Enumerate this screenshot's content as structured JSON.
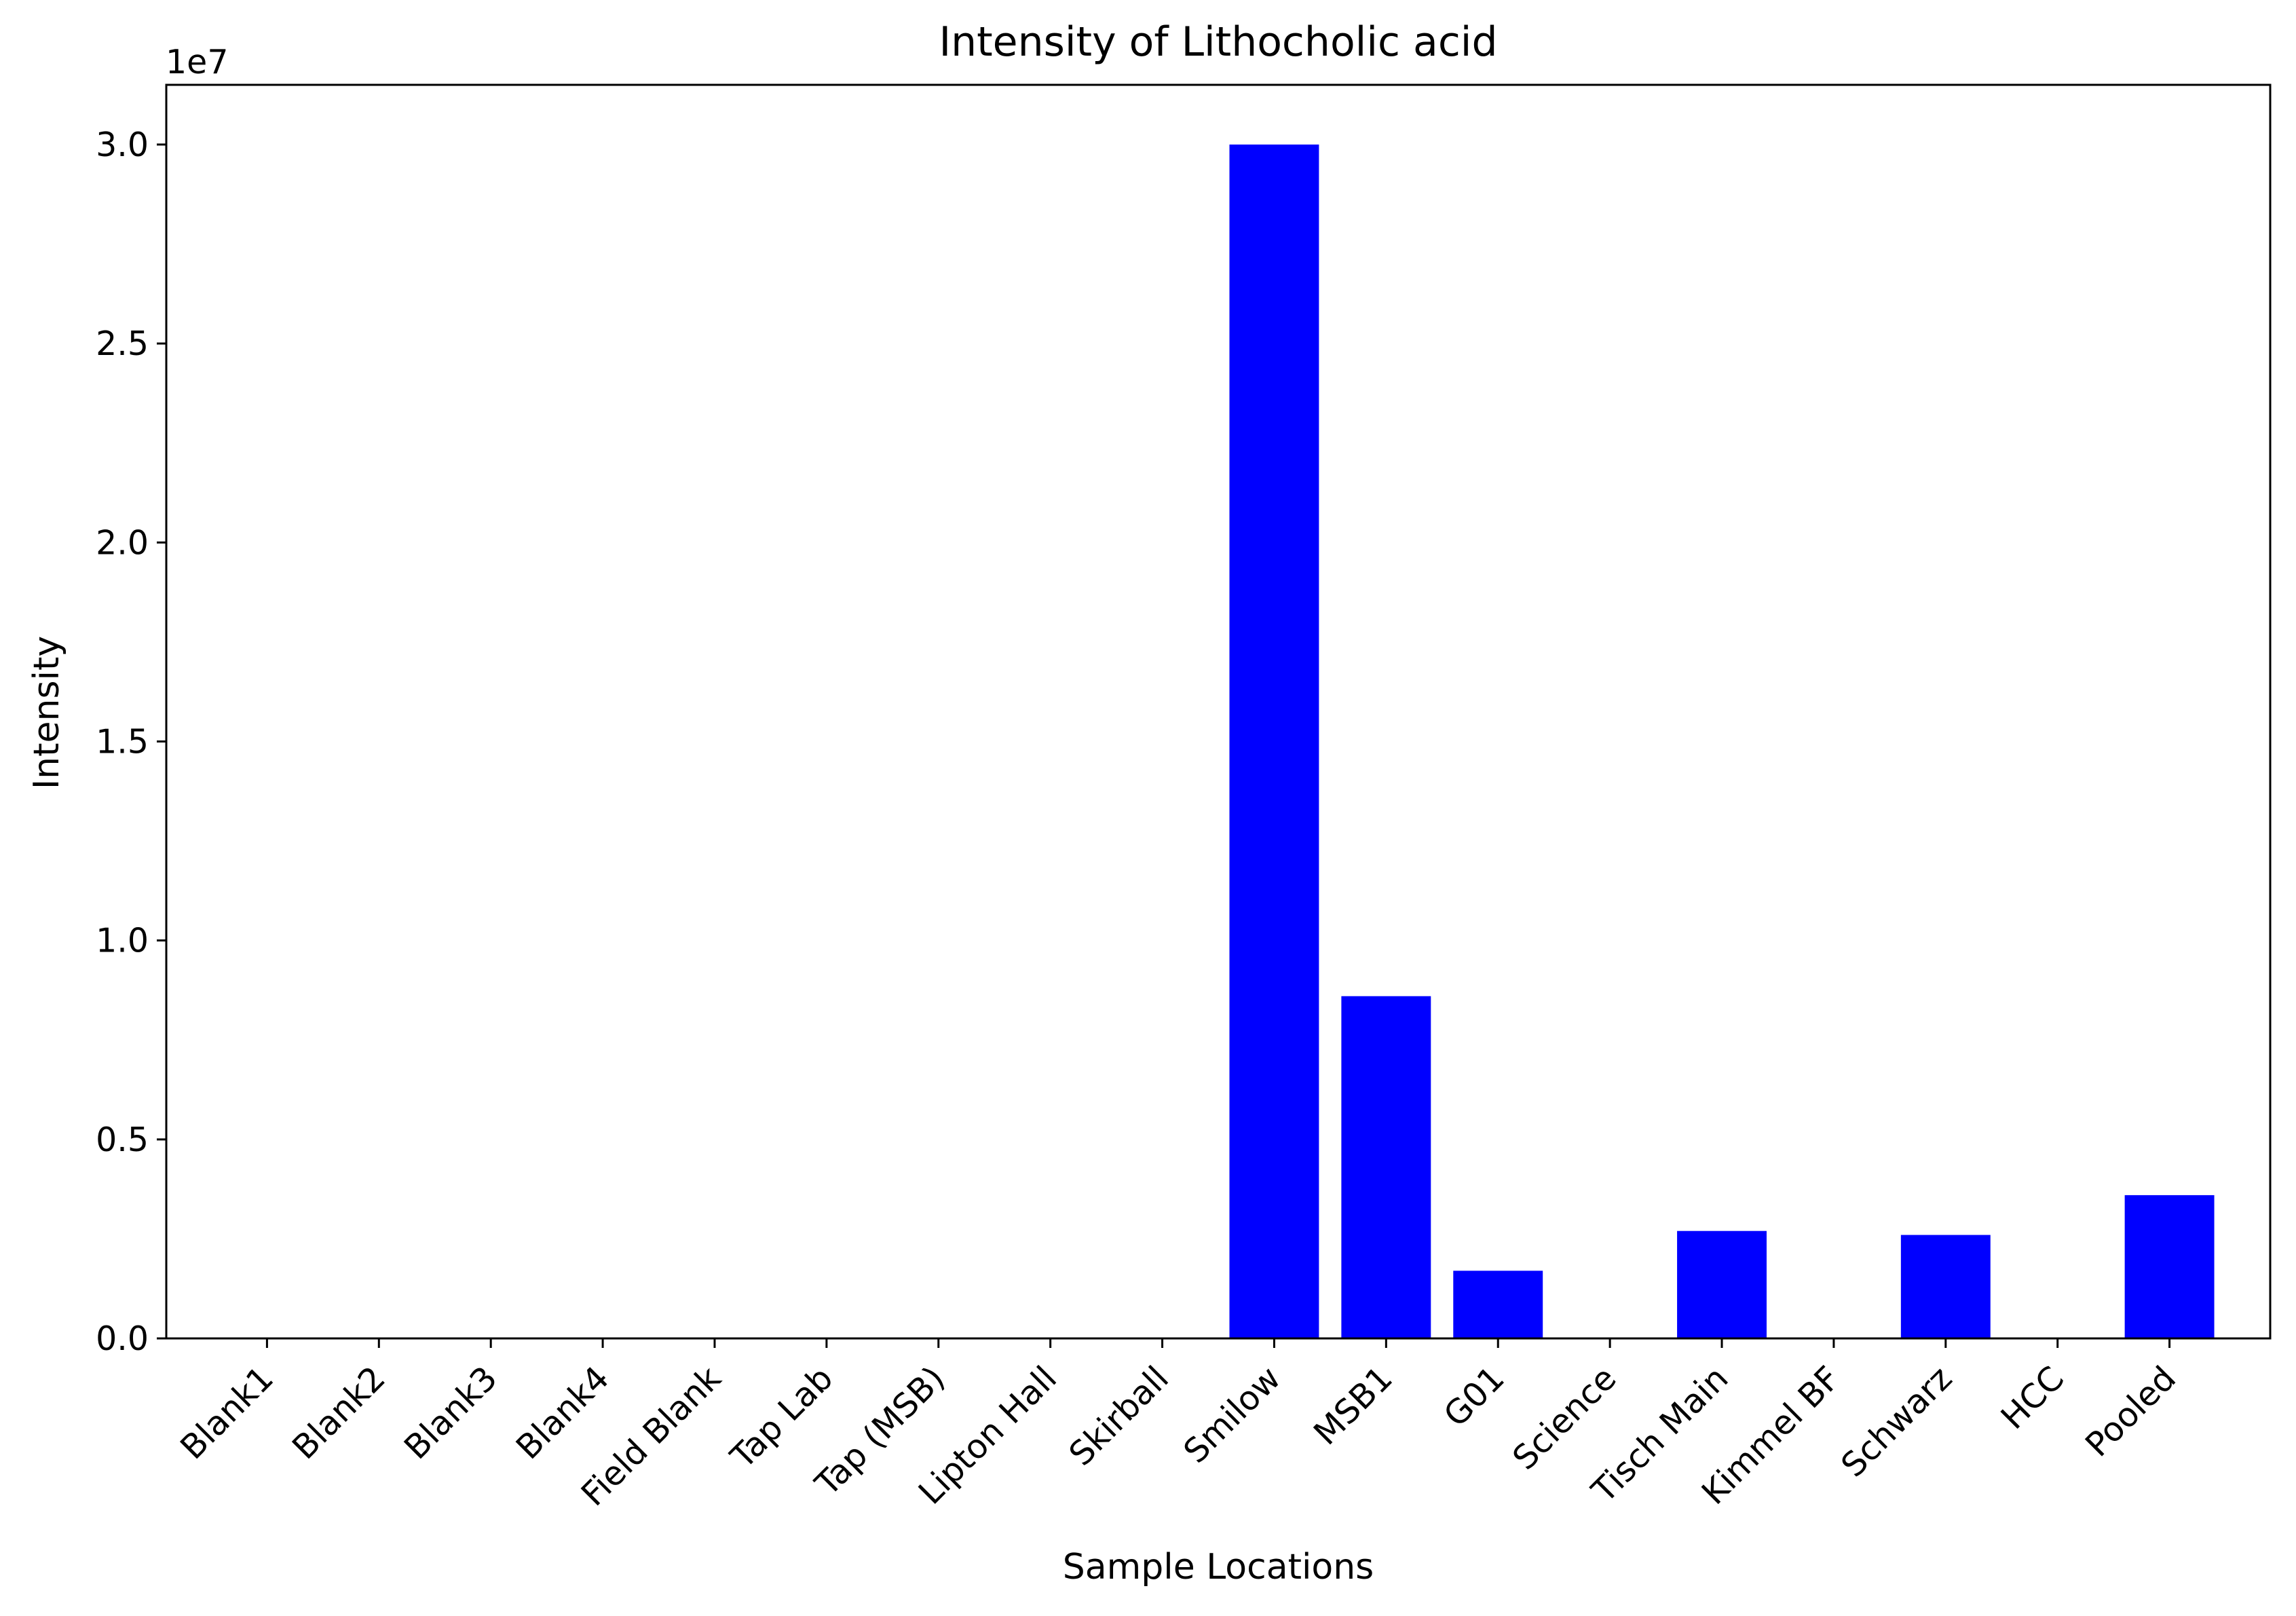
{
  "chart_data": {
    "type": "bar",
    "title": "Intensity of Lithocholic acid",
    "xlabel": "Sample Locations",
    "ylabel": "Intensity",
    "y_offset_label": "1e7",
    "y_scale_factor": 10000000,
    "ylim": [
      0,
      31500000
    ],
    "yticks": [
      0,
      5000000,
      10000000,
      15000000,
      20000000,
      25000000,
      30000000
    ],
    "ytick_labels": [
      "0.0",
      "0.5",
      "1.0",
      "1.5",
      "2.0",
      "2.5",
      "3.0"
    ],
    "grid": false,
    "bar_color": "#0000ff",
    "categories": [
      "Blank1",
      "Blank2",
      "Blank3",
      "Blank4",
      "Field Blank",
      "Tap Lab",
      "Tap (MSB)",
      "Lipton Hall",
      "Skirball",
      "Smilow",
      "MSB1",
      "G01",
      "Science",
      "Tisch Main",
      "Kimmel BF",
      "Schwarz",
      "HCC",
      "Pooled"
    ],
    "values": [
      0,
      0,
      0,
      0,
      0,
      0,
      0,
      0,
      0,
      30000000,
      8600000,
      1700000,
      0,
      2700000,
      0,
      2600000,
      0,
      3600000
    ]
  }
}
